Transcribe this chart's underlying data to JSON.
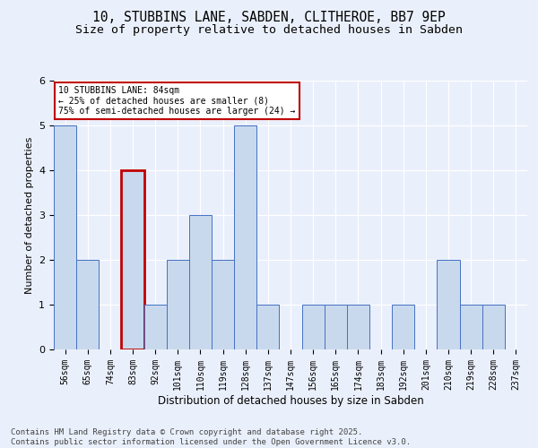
{
  "title_line1": "10, STUBBINS LANE, SABDEN, CLITHEROE, BB7 9EP",
  "title_line2": "Size of property relative to detached houses in Sabden",
  "xlabel": "Distribution of detached houses by size in Sabden",
  "ylabel": "Number of detached properties",
  "categories": [
    "56sqm",
    "65sqm",
    "74sqm",
    "83sqm",
    "92sqm",
    "101sqm",
    "110sqm",
    "119sqm",
    "128sqm",
    "137sqm",
    "147sqm",
    "156sqm",
    "165sqm",
    "174sqm",
    "183sqm",
    "192sqm",
    "201sqm",
    "210sqm",
    "219sqm",
    "228sqm",
    "237sqm"
  ],
  "values": [
    5,
    2,
    0,
    4,
    1,
    2,
    3,
    2,
    5,
    1,
    0,
    1,
    1,
    1,
    0,
    1,
    0,
    2,
    1,
    1,
    0
  ],
  "bar_color": "#c9d9ed",
  "bar_edge_color": "#4472c4",
  "highlight_index": 3,
  "highlight_edge_color": "#c00000",
  "annotation_text": "10 STUBBINS LANE: 84sqm\n← 25% of detached houses are smaller (8)\n75% of semi-detached houses are larger (24) →",
  "annotation_box_color": "#ffffff",
  "annotation_box_edge_color": "#c00000",
  "ylim": [
    0,
    6
  ],
  "yticks": [
    0,
    1,
    2,
    3,
    4,
    5,
    6
  ],
  "background_color": "#eaf0fb",
  "grid_color": "#ffffff",
  "footer_text": "Contains HM Land Registry data © Crown copyright and database right 2025.\nContains public sector information licensed under the Open Government Licence v3.0.",
  "title_fontsize": 10.5,
  "subtitle_fontsize": 9.5,
  "axis_label_fontsize": 8,
  "tick_fontsize": 7,
  "annotation_fontsize": 7,
  "footer_fontsize": 6.5
}
